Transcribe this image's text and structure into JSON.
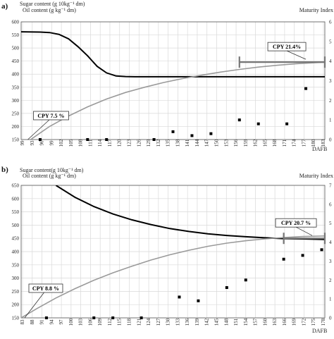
{
  "chart_data": [
    {
      "panel": "a)",
      "type": "line",
      "ylabel_left_1": "Sugar content (g 10kg⁻¹ dm)",
      "ylabel_left_2": "Oil content (g kg⁻¹ dm)",
      "ylabel_right": "Maturity Index",
      "xlabel": "DAFB",
      "x_ticks": [
        "99",
        "93",
        "96",
        "99",
        "102",
        "105",
        "108",
        "111",
        "114",
        "117",
        "120",
        "123",
        "126",
        "129",
        "132",
        "135",
        "138",
        "141",
        "144",
        "147",
        "150",
        "153",
        "156",
        "159",
        "162",
        "165",
        "168",
        "171",
        "174",
        "177",
        "180",
        "183"
      ],
      "xlim": [
        90,
        186
      ],
      "ylim_left": [
        150,
        600
      ],
      "yticks_left": [
        150,
        200,
        250,
        300,
        350,
        400,
        450,
        500,
        550,
        600
      ],
      "ylim_right": [
        0,
        6
      ],
      "yticks_right": [
        0,
        1,
        2,
        3,
        4,
        5,
        6
      ],
      "series": [
        {
          "x": [
            90,
            96,
            99,
            102,
            105,
            108,
            111,
            114,
            117,
            120,
            123,
            126,
            135,
            150,
            165,
            186
          ],
          "values": [
            562,
            561,
            559,
            552,
            535,
            505,
            470,
            430,
            405,
            393,
            391,
            390,
            390,
            390,
            390,
            390
          ]
        },
        {
          "x": [
            93,
            96,
            99,
            105,
            111,
            117,
            123,
            129,
            135,
            141,
            147,
            153,
            159,
            165,
            171,
            177,
            183,
            186
          ],
          "values": [
            150,
            175,
            200,
            240,
            275,
            305,
            330,
            350,
            368,
            383,
            396,
            408,
            418,
            427,
            434,
            440,
            444,
            446
          ]
        },
        {
          "axis": "right",
          "x": [
            96,
            111,
            117,
            132,
            138,
            144,
            150,
            159,
            165,
            174,
            180
          ],
          "values": [
            0,
            0,
            0,
            0,
            0.4,
            0.2,
            0.3,
            1.0,
            0.8,
            0.8,
            2.6
          ]
        }
      ],
      "annotations": [
        {
          "text": "CPY 7.5 %",
          "x": 93,
          "y": 150
        },
        {
          "text": "CPY 21.4%",
          "x": 180,
          "y": 446
        }
      ],
      "bracket": {
        "x": [
          159,
          186
        ],
        "y": 446
      }
    },
    {
      "panel": "b)",
      "type": "line",
      "ylabel_left_1": "Sugar content(g 10kg⁻¹ dm)",
      "ylabel_left_2": "Oil content (g kg⁻¹ dm)",
      "ylabel_right": "Maturity Index",
      "xlabel": "DAFB",
      "x_ticks": [
        "83",
        "88",
        "91",
        "94",
        "97",
        "100",
        "103",
        "106",
        "109",
        "112",
        "115",
        "118",
        "121",
        "124",
        "127",
        "130",
        "133",
        "136",
        "139",
        "142",
        "145",
        "148",
        "151",
        "154",
        "157",
        "160",
        "163",
        "166",
        "169",
        "172",
        "175",
        "178"
      ],
      "xlim": [
        83,
        179
      ],
      "ylim_left": [
        150,
        650
      ],
      "yticks_left": [
        150,
        200,
        250,
        300,
        350,
        400,
        450,
        500,
        550,
        600,
        650
      ],
      "ylim_right": [
        0,
        7
      ],
      "yticks_right": [
        0,
        1,
        2,
        3,
        4,
        5,
        6,
        7
      ],
      "series": [
        {
          "x": [
            94,
            100,
            106,
            112,
            118,
            124,
            130,
            136,
            142,
            148,
            154,
            160,
            166,
            172,
            179
          ],
          "values": [
            650,
            605,
            570,
            542,
            520,
            502,
            487,
            476,
            467,
            461,
            456,
            452,
            449,
            448,
            446
          ]
        },
        {
          "x": [
            83,
            88,
            94,
            100,
            106,
            112,
            118,
            124,
            130,
            136,
            142,
            148,
            154,
            160,
            166,
            172,
            179
          ],
          "values": [
            150,
            185,
            225,
            260,
            292,
            320,
            345,
            368,
            388,
            405,
            420,
            432,
            441,
            448,
            453,
            457,
            459
          ]
        },
        {
          "axis": "right",
          "x": [
            91,
            106,
            112,
            121,
            133,
            139,
            148,
            154,
            166,
            172,
            178
          ],
          "values": [
            0,
            0,
            0,
            0,
            1.1,
            0.9,
            1.6,
            2.0,
            3.1,
            3.3,
            3.6
          ]
        }
      ],
      "annotations": [
        {
          "text": "CPY 8.8 %",
          "x": 85,
          "y": 150
        },
        {
          "text": "CPY 20.7 %",
          "x": 175,
          "y": 450
        }
      ],
      "bracket": {
        "x": [
          166,
          179
        ],
        "y": 450
      }
    }
  ]
}
